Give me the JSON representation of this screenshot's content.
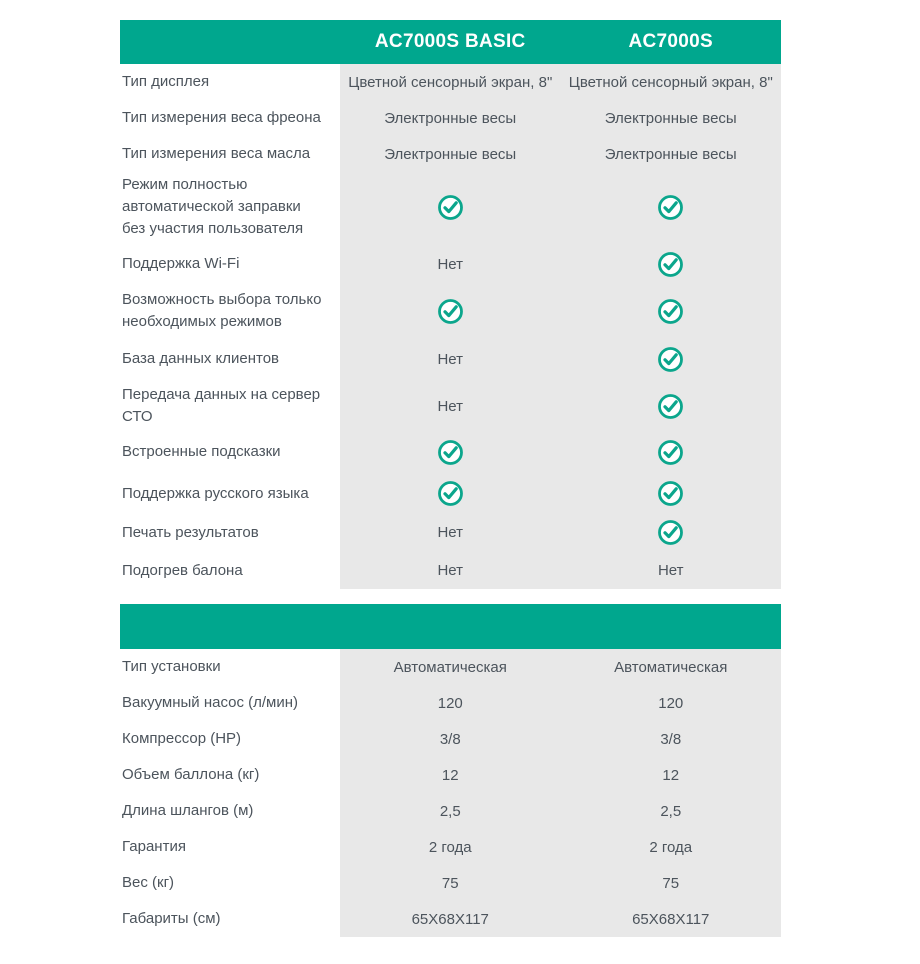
{
  "theme": {
    "accent": "#00A78E",
    "cell_bg": "#E8E8E8",
    "text_color": "#4C545C",
    "header_text_color": "#FFFFFF",
    "check_color": "#0BA68C"
  },
  "columns": [
    "AC7000S BASIC",
    "AC7000S"
  ],
  "check_icon_name": "check-circle-icon",
  "negative_value": "Нет",
  "features_section": {
    "rows": [
      {
        "label": "Тип дисплея",
        "values": [
          "Цветной сенсорный экран, 8\"",
          "Цветной сенсорный экран, 8\""
        ]
      },
      {
        "label": "Тип измерения веса фреона",
        "values": [
          "Электронные весы",
          "Электронные весы"
        ]
      },
      {
        "label": "Тип измерения веса масла",
        "values": [
          "Электронные весы",
          "Электронные весы"
        ]
      },
      {
        "label": "Режим полностью автоматической заправки без участия пользователя",
        "values": [
          "check",
          "check"
        ]
      },
      {
        "label": "Поддержка Wi-Fi",
        "values": [
          "Нет",
          "check"
        ]
      },
      {
        "label": "Возможность выбора только необходимых режимов",
        "values": [
          "check",
          "check"
        ]
      },
      {
        "label": "База данных клиентов",
        "values": [
          "Нет",
          "check"
        ]
      },
      {
        "label": "Передача данных на сервер СТО",
        "values": [
          "Нет",
          "check"
        ]
      },
      {
        "label": "Встроенные подсказки",
        "values": [
          "check",
          "check"
        ]
      },
      {
        "label": "Поддержка русского языка",
        "values": [
          "check",
          "check"
        ]
      },
      {
        "label": "Печать результатов",
        "values": [
          "Нет",
          "check"
        ]
      },
      {
        "label": "Подогрев балона",
        "values": [
          "Нет",
          "Нет"
        ]
      }
    ]
  },
  "specs_section": {
    "rows": [
      {
        "label": "Тип установки",
        "values": [
          "Автоматическая",
          "Автоматическая"
        ]
      },
      {
        "label": "Вакуумный насос (л/мин)",
        "values": [
          "120",
          "120"
        ]
      },
      {
        "label": "Компрессор (HP)",
        "values": [
          "3/8",
          "3/8"
        ]
      },
      {
        "label": "Объем баллона (кг)",
        "values": [
          "12",
          "12"
        ]
      },
      {
        "label": "Длина шлангов (м)",
        "values": [
          "2,5",
          "2,5"
        ]
      },
      {
        "label": "Гарантия",
        "values": [
          "2 года",
          "2 года"
        ]
      },
      {
        "label": "Вес (кг)",
        "values": [
          "75",
          "75"
        ]
      },
      {
        "label": "Габариты (см)",
        "values": [
          "65X68X117",
          "65X68X117"
        ]
      }
    ]
  }
}
